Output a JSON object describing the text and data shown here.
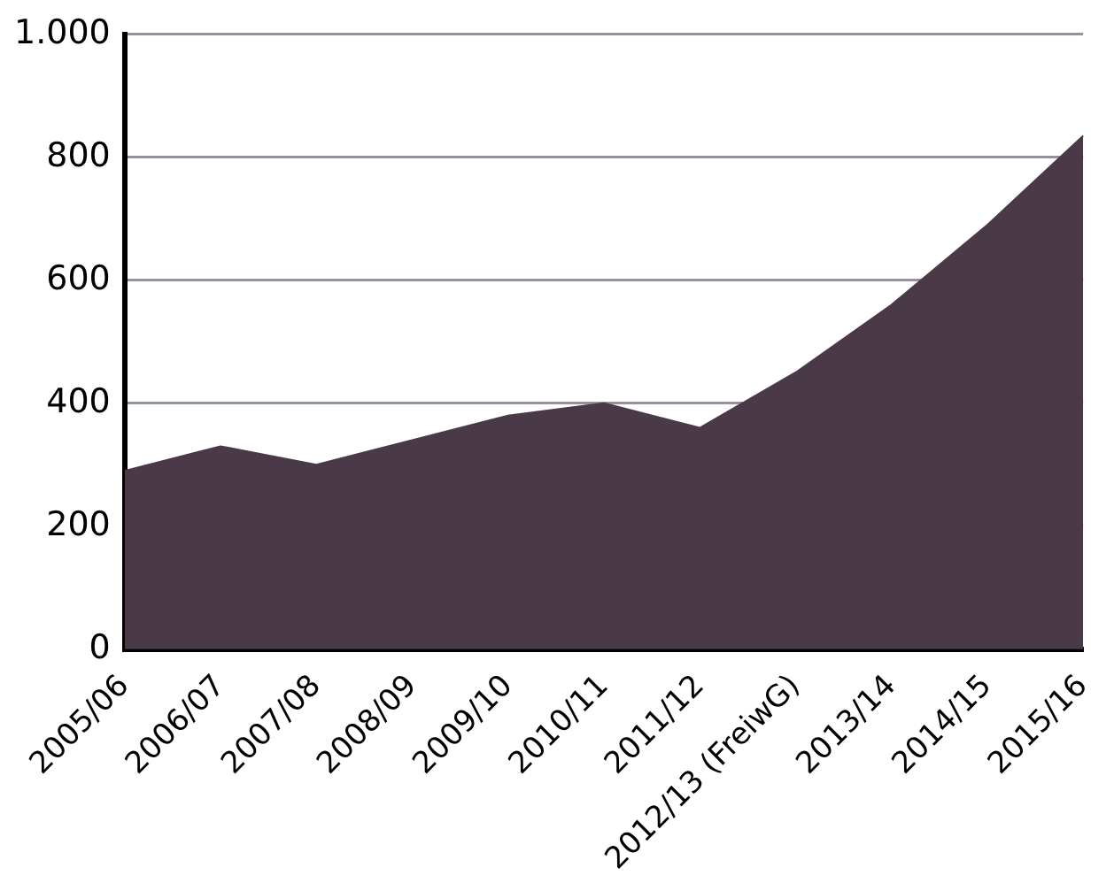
{
  "chart_data": {
    "type": "area",
    "categories": [
      "2005/06",
      "2006/07",
      "2007/08",
      "2008/09",
      "2009/10",
      "2010/11",
      "2011/12",
      "2012/13 (FreiwG)",
      "2013/14",
      "2014/15",
      "2015/16"
    ],
    "values": [
      290,
      330,
      300,
      340,
      380,
      400,
      360,
      450,
      560,
      690,
      835
    ],
    "color": "#4a3a48",
    "ylim": [
      0,
      1000
    ],
    "yticks": [
      0,
      200,
      400,
      600,
      800,
      {
        "value": 1000,
        "label": "1.000"
      }
    ],
    "grid": "y"
  }
}
